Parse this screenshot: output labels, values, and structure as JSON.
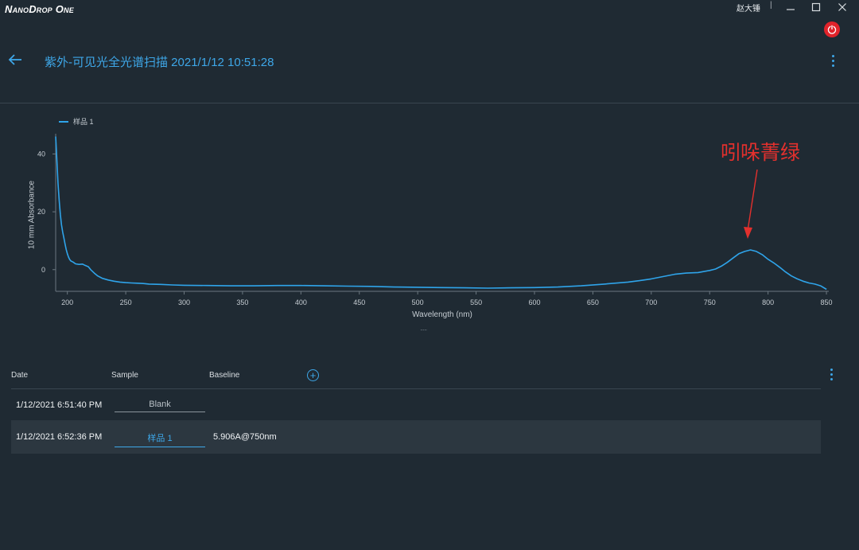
{
  "app": {
    "name": "NanoDrop One",
    "user": "赵大锤",
    "separator": "|"
  },
  "header": {
    "title": "紫外-可见光全光谱扫描 2021/1/12 10:51:28"
  },
  "annotation": {
    "text": "吲哚菁绿",
    "color": "#e3302d"
  },
  "chart_data": {
    "type": "line",
    "legend": [
      "样品 1"
    ],
    "xlabel": "Wavelength (nm)",
    "ylabel": "10 mm Absorbance",
    "xlim": [
      190,
      852
    ],
    "ylim": [
      -7.5,
      47
    ],
    "xticks": [
      200,
      250,
      300,
      350,
      400,
      450,
      500,
      550,
      600,
      650,
      700,
      750,
      800,
      850
    ],
    "yticks": [
      0,
      20,
      40
    ],
    "series": [
      {
        "name": "样品 1",
        "color": "#2fa4ea",
        "points": [
          [
            190,
            46
          ],
          [
            191,
            38
          ],
          [
            192,
            30
          ],
          [
            193,
            24
          ],
          [
            194,
            19
          ],
          [
            195,
            15.5
          ],
          [
            196,
            13
          ],
          [
            197,
            11
          ],
          [
            198,
            9
          ],
          [
            199,
            7
          ],
          [
            200,
            5.5
          ],
          [
            201,
            4.3
          ],
          [
            202,
            3.5
          ],
          [
            203,
            3.0
          ],
          [
            205,
            2.6
          ],
          [
            207,
            2.0
          ],
          [
            210,
            1.8
          ],
          [
            213,
            1.9
          ],
          [
            215,
            1.5
          ],
          [
            218,
            1.0
          ],
          [
            220,
            0
          ],
          [
            223,
            -1.2
          ],
          [
            226,
            -2.2
          ],
          [
            230,
            -3.0
          ],
          [
            235,
            -3.6
          ],
          [
            240,
            -4.0
          ],
          [
            245,
            -4.3
          ],
          [
            250,
            -4.5
          ],
          [
            255,
            -4.6
          ],
          [
            260,
            -4.7
          ],
          [
            265,
            -4.8
          ],
          [
            270,
            -5.0
          ],
          [
            280,
            -5.1
          ],
          [
            290,
            -5.3
          ],
          [
            300,
            -5.4
          ],
          [
            320,
            -5.5
          ],
          [
            340,
            -5.6
          ],
          [
            360,
            -5.6
          ],
          [
            380,
            -5.5
          ],
          [
            400,
            -5.5
          ],
          [
            420,
            -5.6
          ],
          [
            440,
            -5.7
          ],
          [
            460,
            -5.8
          ],
          [
            480,
            -6.0
          ],
          [
            500,
            -6.1
          ],
          [
            520,
            -6.2
          ],
          [
            540,
            -6.3
          ],
          [
            560,
            -6.4
          ],
          [
            580,
            -6.3
          ],
          [
            600,
            -6.2
          ],
          [
            620,
            -6.0
          ],
          [
            640,
            -5.6
          ],
          [
            660,
            -5.0
          ],
          [
            680,
            -4.3
          ],
          [
            690,
            -3.8
          ],
          [
            700,
            -3.2
          ],
          [
            710,
            -2.4
          ],
          [
            720,
            -1.6
          ],
          [
            730,
            -1.2
          ],
          [
            740,
            -1.0
          ],
          [
            750,
            -0.3
          ],
          [
            755,
            0.2
          ],
          [
            760,
            1.2
          ],
          [
            765,
            2.5
          ],
          [
            770,
            4.0
          ],
          [
            775,
            5.5
          ],
          [
            780,
            6.3
          ],
          [
            785,
            6.8
          ],
          [
            790,
            6.3
          ],
          [
            795,
            5.2
          ],
          [
            800,
            3.6
          ],
          [
            805,
            2.3
          ],
          [
            810,
            0.8
          ],
          [
            815,
            -0.8
          ],
          [
            820,
            -2.2
          ],
          [
            825,
            -3.2
          ],
          [
            830,
            -4.0
          ],
          [
            835,
            -4.6
          ],
          [
            840,
            -5.0
          ],
          [
            845,
            -5.6
          ],
          [
            850,
            -6.8
          ]
        ]
      }
    ]
  },
  "table": {
    "columns": {
      "date": "Date",
      "sample": "Sample",
      "baseline": "Baseline"
    },
    "add_symbol": "+",
    "rows": [
      {
        "date": "1/12/2021 6:51:40 PM",
        "sample": "Blank",
        "baseline": ""
      },
      {
        "date": "1/12/2021 6:52:36 PM",
        "sample": "样品 1",
        "baseline": "5.906A@750nm"
      }
    ]
  },
  "drag_grip": "·····",
  "colors": {
    "background": "#1f2a33",
    "accent": "#3ea7e8",
    "series": "#2fa4ea",
    "power": "#e1232b"
  }
}
